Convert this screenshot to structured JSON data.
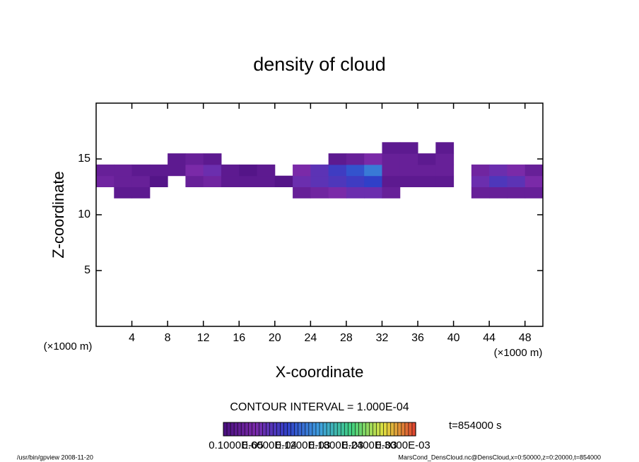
{
  "chart_data": {
    "type": "heatmap",
    "title": "density of cloud",
    "xlabel": "X-coordinate",
    "ylabel": "Z-coordinate",
    "xunit": "(×1000 m)",
    "xlim": [
      0,
      50
    ],
    "xticks": [
      4,
      8,
      12,
      16,
      20,
      24,
      28,
      32,
      36,
      40,
      44,
      48
    ],
    "ylim": [
      0,
      20
    ],
    "yticks": [
      5,
      10,
      15
    ],
    "x": [
      1,
      3,
      5,
      7,
      9,
      11,
      13,
      15,
      17,
      19,
      21,
      23,
      25,
      27,
      29,
      31,
      33,
      35,
      37,
      39,
      41,
      43,
      45,
      47,
      49
    ],
    "y": [
      12,
      13,
      14,
      15,
      16
    ],
    "values": [
      [
        null,
        2e-05,
        2e-05,
        null,
        null,
        null,
        null,
        null,
        null,
        null,
        null,
        3e-05,
        4e-05,
        5e-05,
        6e-05,
        6e-05,
        3e-05,
        null,
        null,
        null,
        null,
        3e-05,
        3e-05,
        3e-05,
        3e-05
      ],
      [
        4e-05,
        3e-05,
        3e-05,
        1e-05,
        null,
        3e-05,
        4e-05,
        2e-05,
        2e-05,
        2e-05,
        1e-05,
        6e-05,
        7e-05,
        8e-05,
        9e-05,
        0.0001,
        2e-05,
        2e-05,
        2e-05,
        2e-05,
        null,
        6e-05,
        8e-05,
        7e-05,
        5e-05
      ],
      [
        3e-05,
        3e-05,
        2e-05,
        2e-05,
        2e-05,
        5e-05,
        6e-05,
        2e-05,
        1e-05,
        2e-05,
        null,
        5e-05,
        7e-05,
        9e-05,
        0.00011,
        0.00013,
        3e-05,
        3e-05,
        3e-05,
        3e-05,
        null,
        4e-05,
        6e-05,
        5e-05,
        3e-05
      ],
      [
        null,
        null,
        null,
        null,
        2e-05,
        3e-05,
        2e-05,
        null,
        null,
        null,
        null,
        null,
        null,
        2e-05,
        3e-05,
        5e-05,
        3e-05,
        3e-05,
        2e-05,
        3e-05,
        null,
        null,
        null,
        null,
        null
      ],
      [
        null,
        null,
        null,
        null,
        null,
        null,
        null,
        null,
        null,
        null,
        null,
        null,
        null,
        null,
        null,
        null,
        2e-05,
        2e-05,
        null,
        2e-05,
        null,
        null,
        null,
        null,
        null
      ]
    ],
    "clim": [
      0,
      0.0003
    ],
    "colormap": [
      "#4a1080",
      "#7a2aa8",
      "#3040c8",
      "#3fa0e0",
      "#40d080",
      "#e0e040",
      "#e04030"
    ],
    "contour_interval": "CONTOUR INTERVAL = 1.000E-04",
    "colorbar_labels": [
      "0.1000E-05",
      "0.6000E-04",
      "0.1200E-03",
      "0.1800E-03",
      "0.2400E-03",
      "0.3000E-03"
    ],
    "time_label": "t=854000 s",
    "footer_left": "/usr/bin/gpview  2008-11-20",
    "footer_right": "MarsCond_DensCloud.nc@DensCloud,x=0:50000,z=0:20000,t=854000"
  }
}
